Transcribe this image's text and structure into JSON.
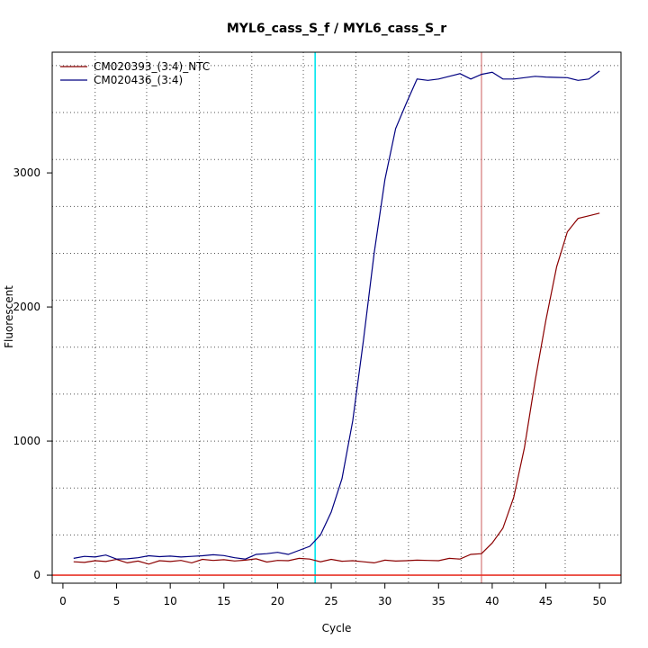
{
  "chart_data": {
    "type": "line",
    "title": "MYL6_cass_S_f / MYL6_cass_S_r",
    "xlabel": "Cycle",
    "ylabel": "Fluorescent",
    "xlim": [
      -1,
      52
    ],
    "ylim": [
      -60,
      3900
    ],
    "x_ticks": [
      0,
      5,
      10,
      15,
      20,
      25,
      30,
      35,
      40,
      45,
      50
    ],
    "y_ticks": [
      0,
      1000,
      2000,
      3000
    ],
    "grid": true,
    "grid_x": [
      3,
      7.8,
      12.7,
      17.6,
      22.4,
      27.3,
      32.2,
      37.1,
      42,
      46.8
    ],
    "grid_y": [
      300,
      650,
      1000,
      1350,
      1700,
      2050,
      2400,
      2750,
      3100,
      3450,
      3800
    ],
    "legend_position": "top-left",
    "series": [
      {
        "name": "CM020393_(3:4)_NTC",
        "color": "#8b0000",
        "x": [
          1,
          2,
          3,
          4,
          5,
          6,
          7,
          8,
          9,
          10,
          11,
          12,
          13,
          14,
          15,
          16,
          17,
          18,
          19,
          20,
          21,
          22,
          23,
          24,
          25,
          26,
          27,
          28,
          29,
          30,
          31,
          32,
          33,
          34,
          35,
          36,
          37,
          38,
          39,
          40,
          41,
          42,
          43,
          44,
          45,
          46,
          47,
          48,
          49,
          50
        ],
        "y": [
          100,
          95,
          108,
          102,
          118,
          92,
          105,
          82,
          108,
          102,
          110,
          92,
          118,
          110,
          115,
          106,
          112,
          122,
          98,
          110,
          108,
          125,
          120,
          100,
          118,
          104,
          108,
          100,
          92,
          112,
          105,
          108,
          112,
          110,
          108,
          125,
          120,
          155,
          160,
          240,
          350,
          580,
          950,
          1450,
          1900,
          2300,
          2560,
          2660,
          2680,
          2700
        ]
      },
      {
        "name": "CM020436_(3:4)",
        "color": "#000080",
        "x": [
          1,
          2,
          3,
          4,
          5,
          6,
          7,
          8,
          9,
          10,
          11,
          12,
          13,
          14,
          15,
          16,
          17,
          18,
          19,
          20,
          21,
          22,
          23,
          24,
          25,
          26,
          27,
          28,
          29,
          30,
          31,
          32,
          33,
          34,
          35,
          36,
          37,
          38,
          39,
          40,
          41,
          42,
          43,
          44,
          45,
          46,
          47,
          48,
          49,
          50
        ],
        "y": [
          125,
          140,
          135,
          150,
          120,
          122,
          130,
          145,
          138,
          142,
          135,
          140,
          145,
          152,
          146,
          130,
          120,
          155,
          160,
          170,
          155,
          185,
          215,
          300,
          470,
          720,
          1150,
          1750,
          2400,
          2950,
          3330,
          3520,
          3700,
          3690,
          3700,
          3720,
          3740,
          3700,
          3735,
          3750,
          3700,
          3700,
          3710,
          3720,
          3715,
          3712,
          3710,
          3690,
          3700,
          3760
        ]
      }
    ],
    "annotations": [
      {
        "type": "vline",
        "x": 23.5,
        "color": "#00e5ee"
      },
      {
        "type": "vline",
        "x": 39.0,
        "color": "#cd5c5c"
      },
      {
        "type": "hline",
        "y": 0,
        "color": "#e8352a"
      }
    ]
  }
}
